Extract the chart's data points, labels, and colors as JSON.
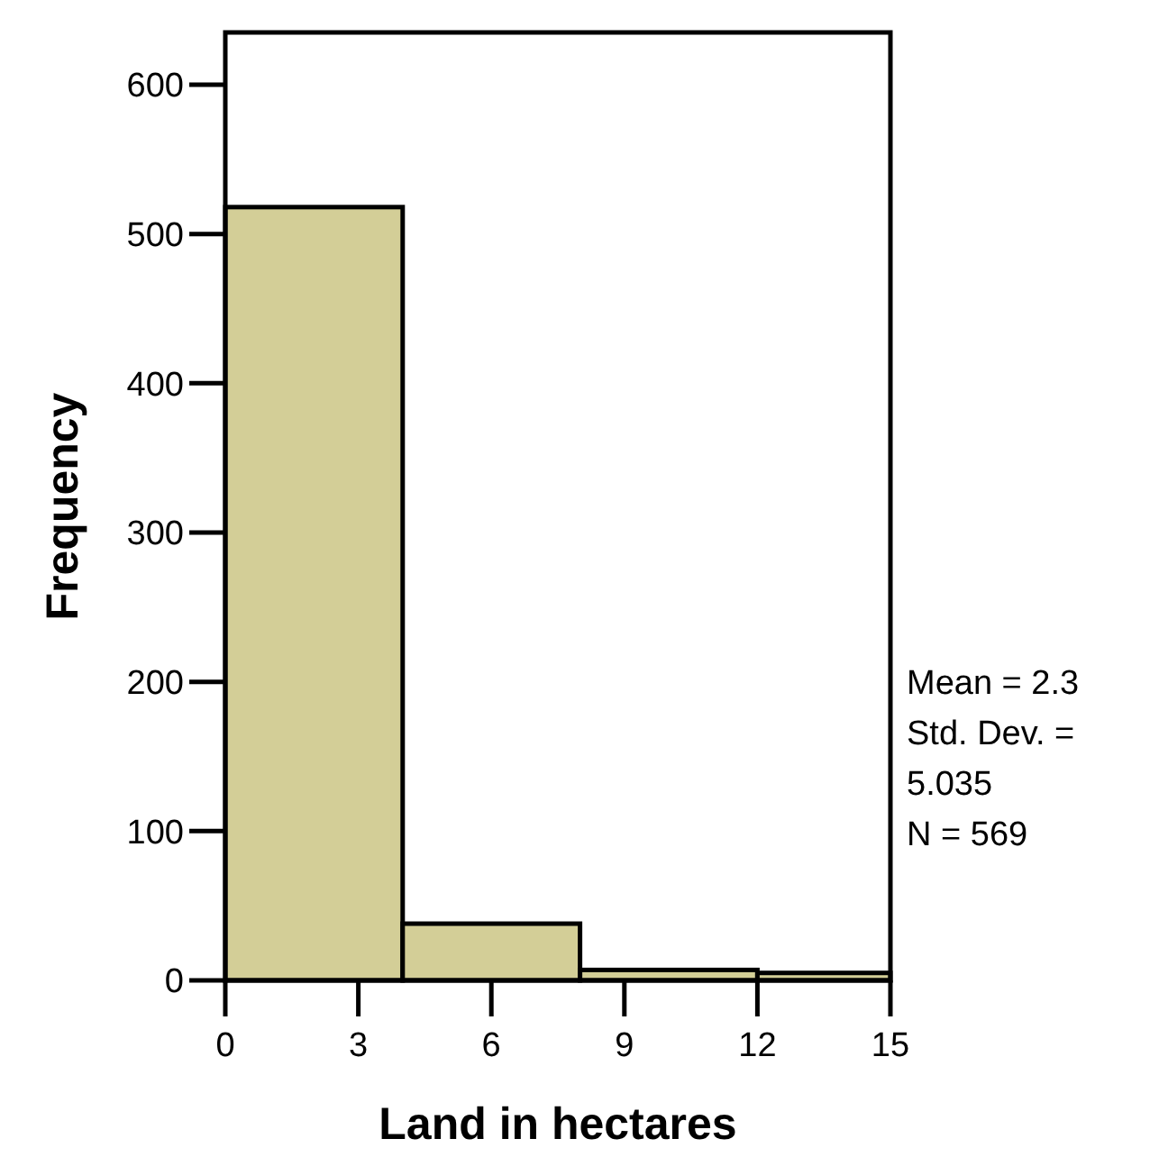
{
  "chart_data": {
    "type": "histogram",
    "xlabel": "Land in hectares",
    "ylabel": "Frequency",
    "bins": [
      0,
      4,
      8,
      12,
      15
    ],
    "values": [
      518,
      38,
      7,
      5
    ],
    "color": "#d3ce97",
    "xlim": [
      0,
      15
    ],
    "xticks": [
      0,
      3,
      6,
      9,
      12,
      15
    ],
    "ylim": [
      0,
      635
    ],
    "yticks": [
      0,
      100,
      200,
      300,
      400,
      500,
      600
    ],
    "grid": false,
    "annotations": [
      "Mean = 2.3\nStd. Dev. =\n5.035\nN = 569"
    ]
  }
}
